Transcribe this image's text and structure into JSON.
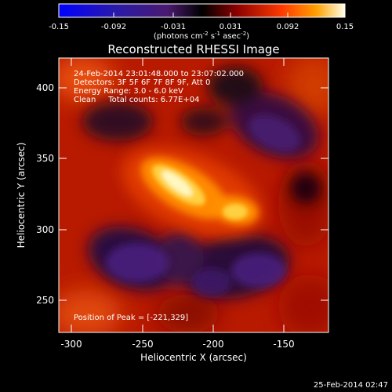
{
  "colorbar": {
    "tick_labels": [
      "-0.15",
      "-0.092",
      "-0.031",
      "0.031",
      "0.092",
      "0.15"
    ],
    "unit_label": "(photons cm",
    "unit_exp1": "-2",
    "unit_mid": " s",
    "unit_exp2": "-1",
    "unit_mid2": " asec",
    "unit_exp3": "-2",
    "unit_end": ")",
    "min": -0.15,
    "max": 0.15
  },
  "plot": {
    "title": "Reconstructed RHESSI Image",
    "annotation_lines": [
      "24-Feb-2014 23:01:48.000 to 23:07:02.000",
      "Detectors: 3F 5F 6F 7F 8F 9F, Att 0",
      "Energy Range: 3.0 - 6.0 keV",
      "Clean     Total counts: 6.77E+04"
    ],
    "peak_label": "Position of Peak = [-221,329]",
    "peak_position": [
      -221,
      329
    ],
    "xlabel": "Heliocentric X (arcsec)",
    "ylabel": "Heliocentric Y (arcsec)",
    "x_ticks": [
      "-300",
      "-250",
      "-200",
      "-150"
    ],
    "y_ticks": [
      "250",
      "300",
      "350",
      "400"
    ],
    "xlim": [
      -310,
      -114
    ],
    "ylim": [
      228,
      424
    ]
  },
  "footer": {
    "timestamp": "25-Feb-2014 02:47"
  },
  "colors": {
    "background": "#000000",
    "positive_peak": "#ffffe0",
    "positive_mid": "#ff6a00",
    "negative": "#3a1a6e"
  }
}
